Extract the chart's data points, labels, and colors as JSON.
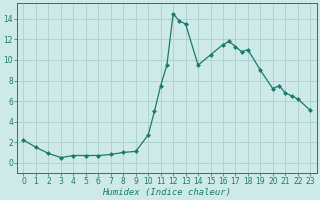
{
  "x_vals": [
    0,
    1,
    2,
    3,
    4,
    5,
    6,
    7,
    8,
    9,
    10,
    10.5,
    11,
    11.5,
    12,
    12.5,
    13,
    14,
    15,
    16,
    16.5,
    17,
    17.5,
    18,
    19,
    20,
    20.5,
    21,
    21.5,
    22,
    23
  ],
  "y_vals": [
    2.2,
    1.5,
    0.9,
    0.5,
    0.7,
    0.7,
    0.7,
    0.8,
    1.0,
    1.1,
    2.7,
    5.0,
    7.5,
    9.5,
    14.5,
    13.8,
    13.5,
    9.5,
    10.5,
    11.5,
    11.8,
    11.3,
    10.8,
    11.0,
    9.0,
    7.2,
    7.5,
    6.8,
    6.5,
    6.2,
    5.1
  ],
  "xlabel": "Humidex (Indice chaleur)",
  "xlim": [
    -0.5,
    23.5
  ],
  "ylim": [
    -1.0,
    15.5
  ],
  "yticks": [
    0,
    2,
    4,
    6,
    8,
    10,
    12,
    14
  ],
  "xticks": [
    0,
    1,
    2,
    3,
    4,
    5,
    6,
    7,
    8,
    9,
    10,
    11,
    12,
    13,
    14,
    15,
    16,
    17,
    18,
    19,
    20,
    21,
    22,
    23
  ],
  "line_color": "#1a7a6e",
  "bg_color": "#ceeae8",
  "grid_color_major": "#aacfcc",
  "grid_color_minor": "#aacfcc",
  "marker_size": 2.5,
  "tick_fontsize": 5.5,
  "xlabel_fontsize": 6.5
}
